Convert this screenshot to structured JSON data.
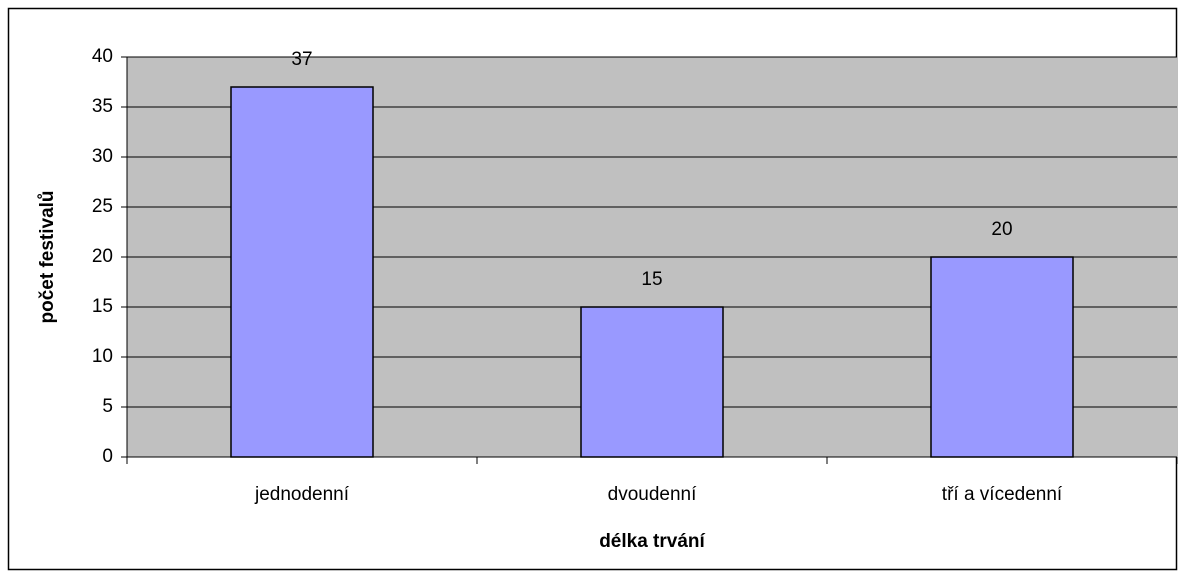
{
  "chart_data": {
    "type": "bar",
    "categories": [
      "jednodenní",
      "dvoudenní",
      "tří a vícedenní"
    ],
    "values": [
      37,
      15,
      20
    ],
    "color": "#9999ff",
    "xlabel": "délka trvání",
    "ylabel": "počet festivalů",
    "ylim": [
      0,
      40
    ],
    "yticks": [
      0,
      5,
      10,
      15,
      20,
      25,
      30,
      35,
      40
    ],
    "grid": true
  }
}
